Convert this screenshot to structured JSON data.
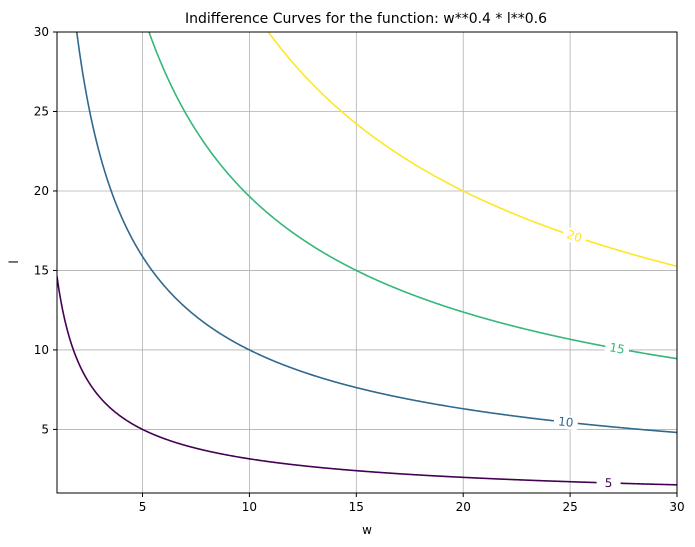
{
  "chart_data": {
    "type": "line",
    "title": "Indifference Curves for the function: w**0.4 * l**0.6",
    "xlabel": "w",
    "ylabel": "l",
    "xlim": [
      1,
      30
    ],
    "ylim": [
      1,
      30
    ],
    "xticks": [
      5,
      10,
      15,
      20,
      25,
      30
    ],
    "yticks": [
      5,
      10,
      15,
      20,
      25,
      30
    ],
    "grid": true,
    "function": "w**0.4 * l**0.6",
    "series": [
      {
        "label": "5",
        "level": 5,
        "color": "#440154",
        "label_at_x": 26.8
      },
      {
        "label": "10",
        "level": 10,
        "color": "#31688e",
        "label_at_x": 24.8
      },
      {
        "label": "15",
        "level": 15,
        "color": "#35b779",
        "label_at_x": 27.2
      },
      {
        "label": "20",
        "level": 20,
        "color": "#fde725",
        "label_at_x": 25.2
      }
    ]
  }
}
